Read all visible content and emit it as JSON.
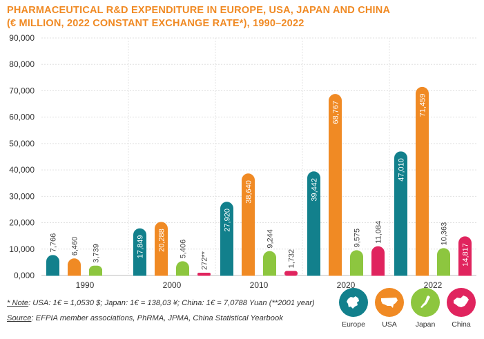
{
  "title_line1": "PHARMACEUTICAL R&D EXPENDITURE IN EUROPE, USA, JAPAN AND CHINA",
  "title_line2": "(€ MILLION, 2022 CONSTANT EXCHANGE RATE*), 1990–2022",
  "footnote": {
    "note_label": "* Note",
    "note_text": ": USA: 1€ = 1,0530 $; Japan: 1€ = 138,03 ¥; China: 1€ = 7,0788 Yuan (**2001 year)",
    "source_label": "Source",
    "source_text": ": EFPIA member associations, PhRMA, JPMA, China Statistical Yearbook"
  },
  "legend": [
    {
      "name": "Europe",
      "color": "#12808c",
      "icon": "europe-map-icon"
    },
    {
      "name": "USA",
      "color": "#f08a24",
      "icon": "usa-map-icon"
    },
    {
      "name": "Japan",
      "color": "#8dc63f",
      "icon": "japan-map-icon"
    },
    {
      "name": "China",
      "color": "#e0245e",
      "icon": "china-map-icon"
    }
  ],
  "chart_data": {
    "type": "bar",
    "title": "PHARMACEUTICAL R&D EXPENDITURE IN EUROPE, USA, JAPAN AND CHINA (€ MILLION, 2022 CONSTANT EXCHANGE RATE*), 1990–2022",
    "categories": [
      "1990",
      "2000",
      "2010",
      "2020",
      "2022"
    ],
    "ylim": [
      0,
      90000
    ],
    "yticks": [
      "0,000",
      "10,000",
      "20,000",
      "30,000",
      "40,000",
      "50,000",
      "60,000",
      "70,000",
      "80,000",
      "90,000"
    ],
    "grid": true,
    "series": [
      {
        "name": "Europe",
        "color": "#12808c",
        "values": [
          7766,
          17849,
          27920,
          39442,
          47010
        ],
        "labels": [
          "7,766",
          "17,849",
          "27,920",
          "39,442",
          "47,010"
        ]
      },
      {
        "name": "USA",
        "color": "#f08a24",
        "values": [
          6460,
          20288,
          38640,
          68767,
          71459
        ],
        "labels": [
          "6,460",
          "20,288",
          "38,640",
          "68,767",
          "71,459"
        ]
      },
      {
        "name": "Japan",
        "color": "#8dc63f",
        "values": [
          3739,
          5406,
          9244,
          9575,
          10363
        ],
        "labels": [
          "3,739",
          "5,406",
          "9,244",
          "9,575",
          "10,363"
        ]
      },
      {
        "name": "China",
        "color": "#e0245e",
        "values": [
          null,
          272,
          1732,
          11084,
          14817
        ],
        "labels": [
          "",
          "272**",
          "1,732",
          "11,084",
          "14,817"
        ]
      }
    ]
  }
}
